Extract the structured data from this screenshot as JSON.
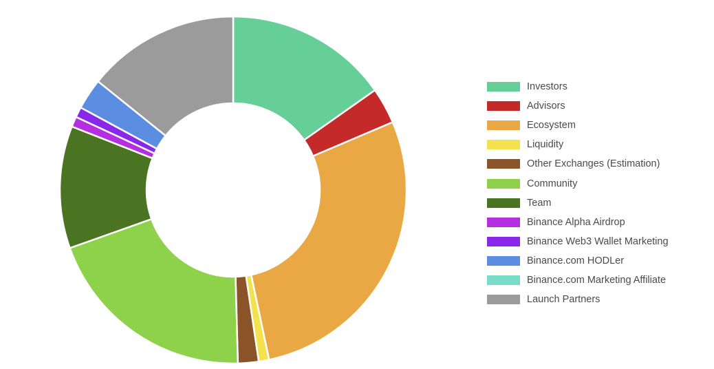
{
  "chart_data": {
    "type": "pie",
    "donut": true,
    "legend_position": "right",
    "unit": "%",
    "series": [
      {
        "name": "Investors",
        "value": 15.85,
        "color": "#66cf98"
      },
      {
        "name": "Advisors",
        "value": 3.5,
        "color": "#c42a2a"
      },
      {
        "name": "Ecosystem",
        "value": 29.2,
        "color": "#eaa844"
      },
      {
        "name": "Liquidity",
        "value": 1.0,
        "color": "#f3e24d"
      },
      {
        "name": "Other Exchanges (Estimation)",
        "value": 2.0,
        "color": "#8b5428"
      },
      {
        "name": "Community",
        "value": 20.8,
        "color": "#8ed14a"
      },
      {
        "name": "Team",
        "value": 11.85,
        "color": "#4a7421"
      },
      {
        "name": "Binance Alpha Airdrop",
        "value": 1.0,
        "color": "#b52fe0"
      },
      {
        "name": "Binance Web3 Wallet Marketing",
        "value": 1.0,
        "color": "#8a28ea"
      },
      {
        "name": "Binance.com HODLer",
        "value": 3.0,
        "color": "#5b8ee0"
      },
      {
        "name": "Binance.com Marketing Affiliate",
        "value": 0.0,
        "color": "#79dcc7"
      },
      {
        "name": "Launch Partners",
        "value": 14.8,
        "color": "#9b9b9b"
      }
    ]
  }
}
